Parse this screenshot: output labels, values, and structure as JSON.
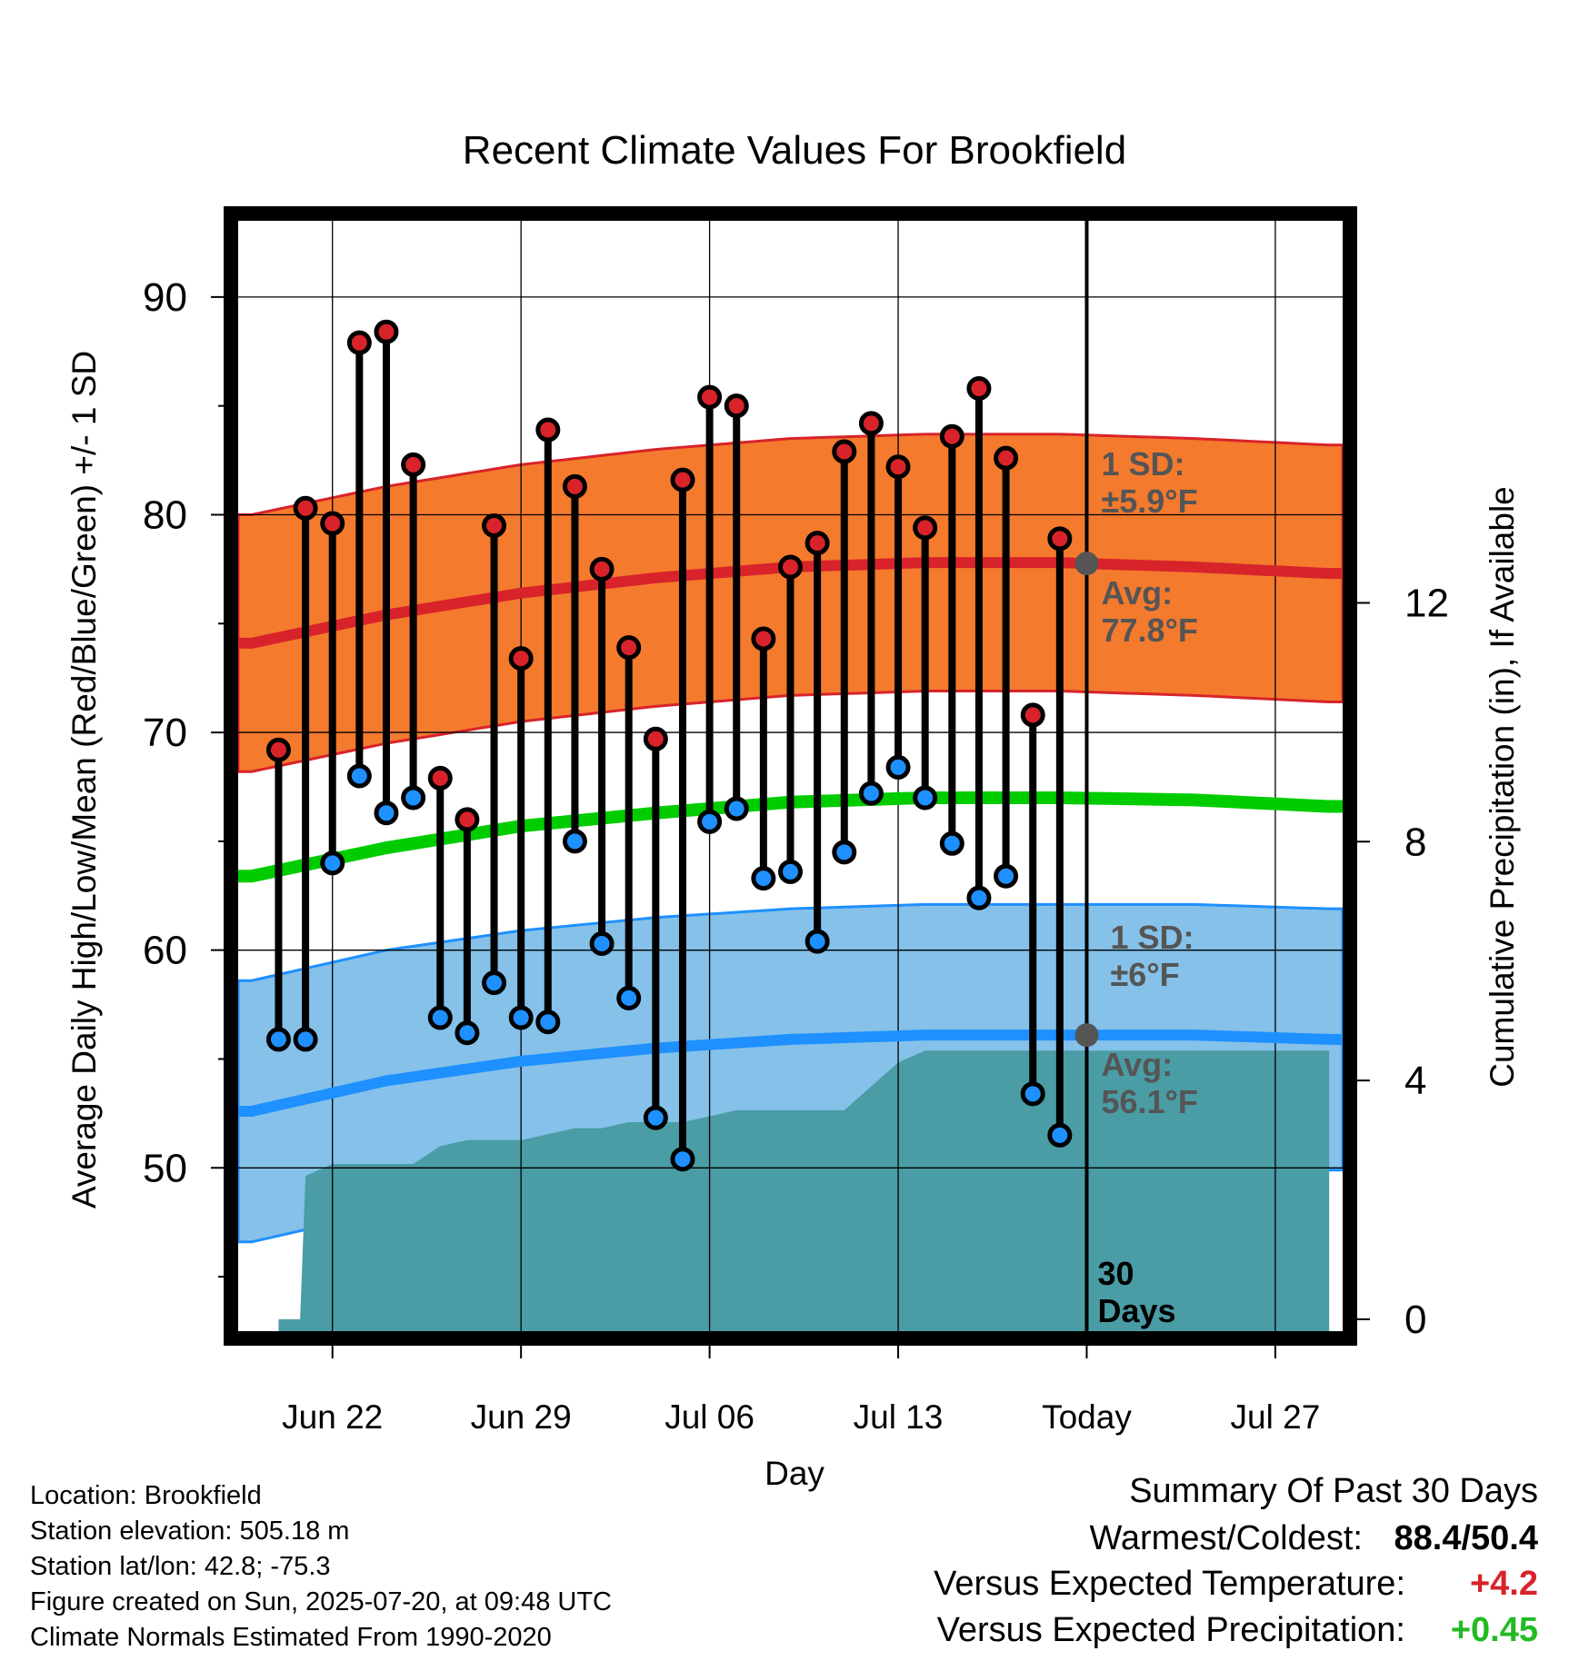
{
  "chart_data": {
    "type": "line",
    "title": "Recent Climate Values For Brookfield",
    "xlabel": "Day",
    "ylabel": "Average Daily High/Low/Mean (Red/Blue/Green) +/- 1 SD",
    "y2label": "Cumulative Precipitation (in), If Available",
    "ylim": [
      42.5,
      93.5
    ],
    "y2lim": [
      -0.2,
      18.4
    ],
    "yticks": [
      "50",
      "60",
      "70",
      "80",
      "90"
    ],
    "y2ticks": [
      "0",
      "4",
      "8",
      "12"
    ],
    "xticks": [
      {
        "day": 3,
        "label": "Jun 22"
      },
      {
        "day": 10,
        "label": "Jun 29"
      },
      {
        "day": 17,
        "label": "Jul 06"
      },
      {
        "day": 24,
        "label": "Jul 13"
      },
      {
        "day": 31,
        "label": "Today"
      },
      {
        "day": 38,
        "label": "Jul 27"
      }
    ],
    "xlim": [
      -0.5,
      40.5
    ],
    "grid": true,
    "today_day": 31,
    "window_label": "30\nDays",
    "days": [
      1,
      2,
      3,
      4,
      5,
      6,
      7,
      8,
      9,
      10,
      11,
      12,
      13,
      14,
      15,
      16,
      17,
      18,
      19,
      20,
      21,
      22,
      23,
      24,
      25,
      26,
      27,
      28,
      29,
      30
    ],
    "daily_high": [
      69.2,
      80.3,
      79.6,
      87.9,
      88.4,
      82.3,
      67.9,
      66.0,
      79.5,
      73.4,
      83.9,
      81.3,
      77.5,
      73.9,
      69.7,
      81.6,
      85.4,
      85.0,
      74.3,
      77.6,
      78.7,
      82.9,
      84.2,
      82.2,
      79.4,
      83.6,
      85.8,
      82.6,
      70.8,
      78.9
    ],
    "daily_low": [
      55.9,
      55.9,
      64.0,
      68.0,
      66.3,
      67.0,
      56.9,
      56.2,
      58.5,
      56.9,
      56.7,
      65.0,
      60.3,
      57.8,
      52.3,
      50.4,
      65.9,
      66.5,
      63.3,
      63.6,
      60.4,
      64.5,
      67.2,
      68.4,
      67.0,
      64.9,
      62.4,
      63.4,
      53.4,
      51.5
    ],
    "normal_high": {
      "days": [
        0,
        5,
        10,
        15,
        20,
        25,
        30,
        35,
        40
      ],
      "mean": [
        74.1,
        75.4,
        76.4,
        77.1,
        77.6,
        77.8,
        77.8,
        77.6,
        77.3
      ],
      "sd": 5.9
    },
    "normal_low": {
      "days": [
        0,
        5,
        10,
        15,
        20,
        25,
        30,
        35,
        40
      ],
      "mean": [
        52.6,
        54.0,
        54.9,
        55.5,
        55.9,
        56.1,
        56.1,
        56.1,
        55.9
      ],
      "sd": 6
    },
    "normal_mean": {
      "days": [
        0,
        5,
        10,
        15,
        20,
        25,
        30,
        35,
        40
      ],
      "values": [
        63.4,
        64.7,
        65.7,
        66.3,
        66.8,
        67.0,
        67.0,
        66.9,
        66.6
      ]
    },
    "cumulative_precip": {
      "days": [
        1,
        1.8,
        2,
        3,
        4,
        5,
        6,
        7,
        8,
        9,
        10,
        11,
        12,
        13,
        14,
        15,
        16,
        17,
        18,
        19,
        20,
        21,
        22,
        23,
        24,
        25,
        26,
        27,
        28,
        29,
        30,
        31,
        40
      ],
      "values": [
        0,
        0,
        2.4,
        2.6,
        2.6,
        2.6,
        2.6,
        2.9,
        3.0,
        3.0,
        3.0,
        3.1,
        3.2,
        3.2,
        3.3,
        3.3,
        3.3,
        3.4,
        3.5,
        3.5,
        3.5,
        3.5,
        3.5,
        3.9,
        4.3,
        4.5,
        4.5,
        4.5,
        4.5,
        4.5,
        4.5,
        4.5,
        4.5
      ]
    },
    "annotations": {
      "high_sd_label": "1 SD:",
      "high_sd_value": "±5.9°F",
      "high_avg_label": "Avg:",
      "high_avg_value": "77.8°F",
      "low_sd_label": "1 SD:",
      "low_sd_value": "±6°F",
      "low_avg_label": "Avg:",
      "low_avg_value": "56.1°F"
    },
    "colors": {
      "high_band": "#f47a2e",
      "high_line": "#d8232a",
      "low_band": "#85c1e9",
      "low_line": "#1e90ff",
      "mean_line": "#00cc00",
      "precip": "#4a9ca5",
      "high_marker": "#d8232a",
      "low_marker": "#1e90ff",
      "annotation_text": "#555555"
    }
  },
  "footer": {
    "location": "Location: Brookfield",
    "elevation": "Station elevation: 505.18 m",
    "latlon": "Station lat/lon: 42.8; -75.3",
    "created": "Figure created on Sun, 2025-07-20, at 09:48 UTC",
    "normals": "Climate Normals Estimated From 1990-2020"
  },
  "summary": {
    "title": "Summary Of Past 30 Days",
    "warmest_label": "Warmest/Coldest:",
    "warmest_value": "88.4/50.4",
    "temp_label": "Versus Expected Temperature:",
    "temp_value": "+4.2",
    "temp_color": "#d8232a",
    "precip_label": "Versus Expected Precipitation:",
    "precip_value": "+0.45",
    "precip_color": "#22bb22"
  }
}
